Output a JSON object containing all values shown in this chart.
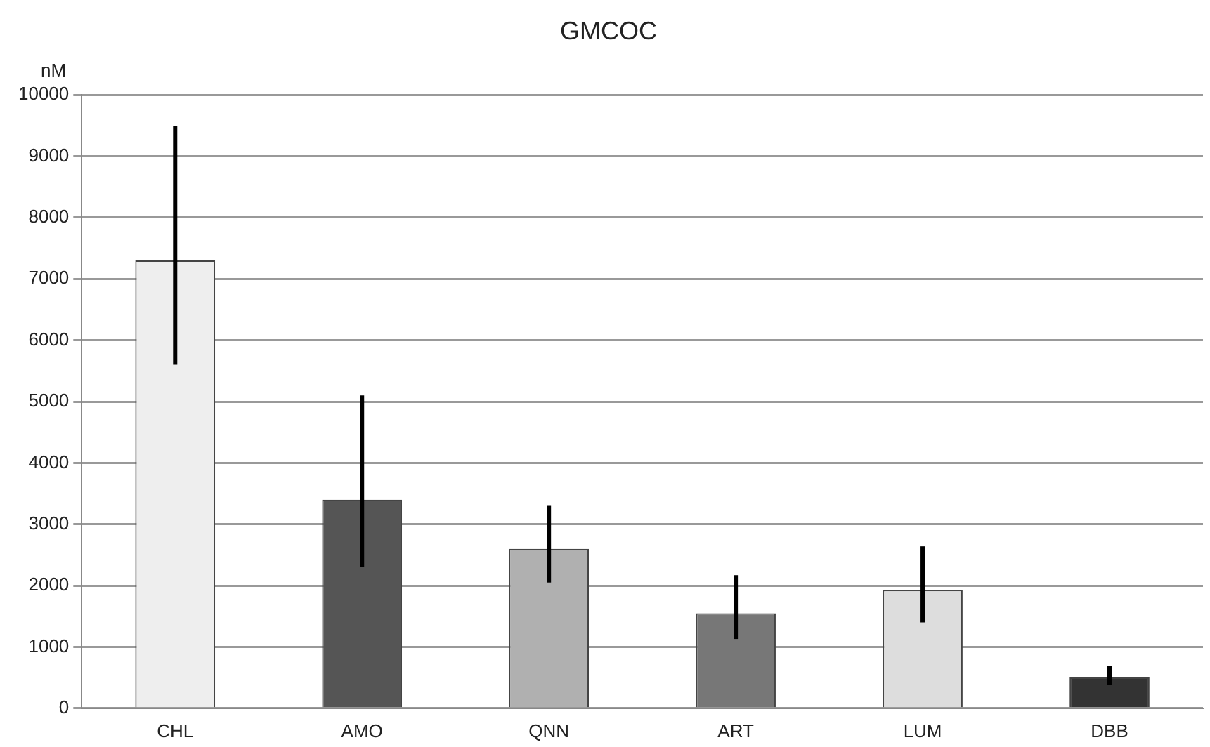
{
  "chart_data": {
    "type": "bar",
    "title": "GMCOC",
    "ylabel": "nM",
    "categories": [
      "CHL",
      "AMO",
      "QNN",
      "ART",
      "LUM",
      "DBB"
    ],
    "values": [
      7300,
      3400,
      2600,
      1550,
      1930,
      500
    ],
    "colors": [
      "#eeeeee",
      "#555555",
      "#b0b0b0",
      "#777777",
      "#dddddd",
      "#333333"
    ],
    "errors": [
      [
        5600,
        9500
      ],
      [
        2300,
        5100
      ],
      [
        2050,
        3300
      ],
      [
        1130,
        2170
      ],
      [
        1400,
        2640
      ],
      [
        380,
        690
      ]
    ],
    "ylim": [
      0,
      10000
    ],
    "yticks": [
      0,
      1000,
      2000,
      3000,
      4000,
      5000,
      6000,
      7000,
      8000,
      9000,
      10000
    ],
    "grid": "y",
    "legend": false
  }
}
